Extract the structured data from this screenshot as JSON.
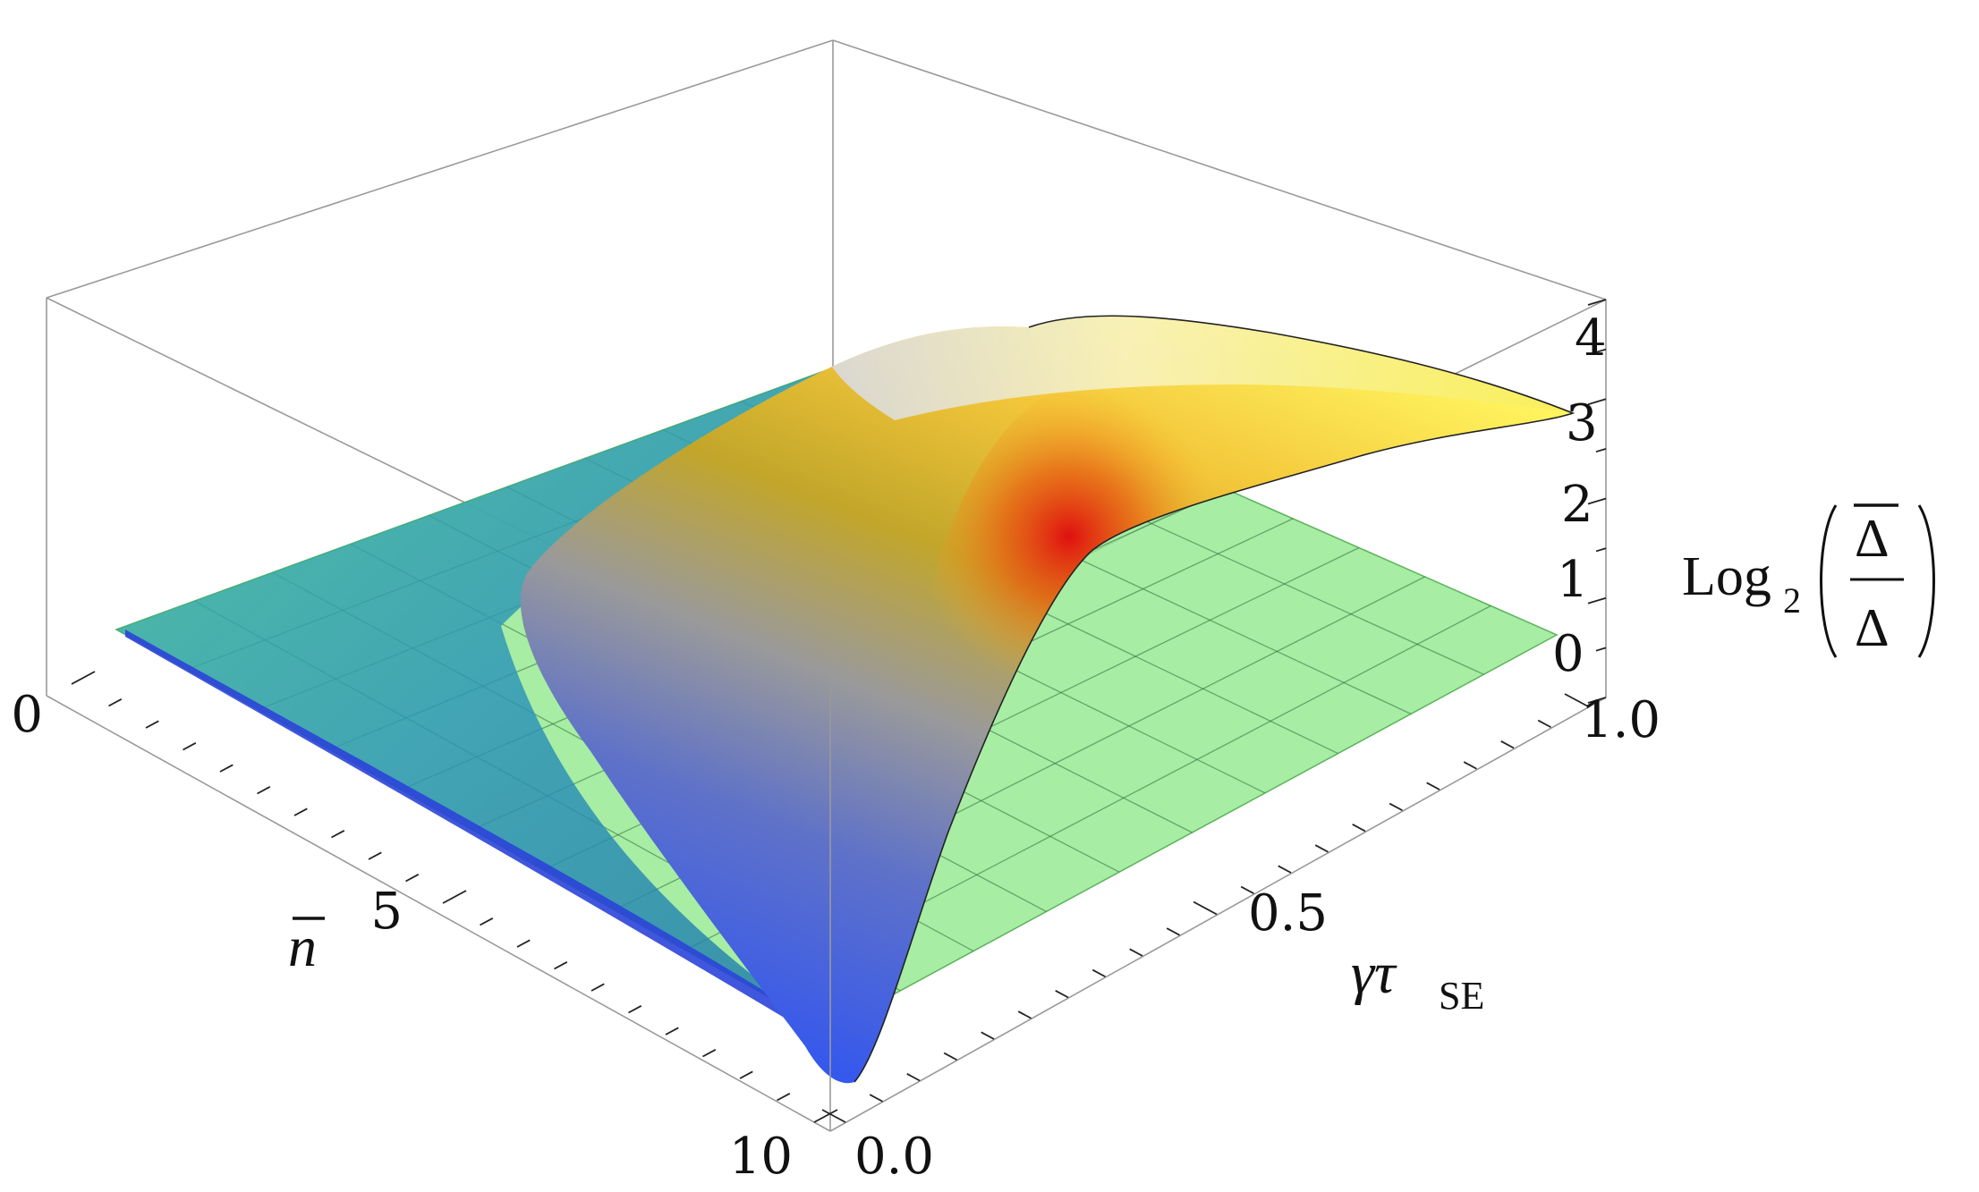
{
  "chart_data": {
    "type": "surface3d",
    "axes": {
      "x": {
        "label_main": "γτ",
        "label_sub": "SE",
        "range": [
          0,
          1
        ],
        "ticks": [
          "0.0",
          "0.5",
          "1.0"
        ]
      },
      "y": {
        "label": "n",
        "label_overbar": true,
        "range": [
          0,
          10
        ],
        "ticks": [
          "0",
          "5",
          "10"
        ]
      },
      "z": {
        "label_main": "Log",
        "label_sub": "2",
        "label_numerator": "Δ",
        "label_numerator_overbar": true,
        "label_denominator": "Δ",
        "range": [
          0,
          4
        ],
        "ticks": [
          "0",
          "1",
          "2",
          "3",
          "4"
        ]
      }
    },
    "reference_plane": {
      "z": 0,
      "color": "#8ee88a",
      "grid_divisions": 10
    },
    "surface_samples": [
      {
        "gamma_tau": 0.0,
        "n": 0,
        "log2_ratio": 0.0
      },
      {
        "gamma_tau": 0.0,
        "n": 5,
        "log2_ratio": -0.2
      },
      {
        "gamma_tau": 0.0,
        "n": 10,
        "log2_ratio": -0.6
      },
      {
        "gamma_tau": 0.1,
        "n": 10,
        "log2_ratio": 0.5
      },
      {
        "gamma_tau": 0.2,
        "n": 10,
        "log2_ratio": 2.8
      },
      {
        "gamma_tau": 0.3,
        "n": 10,
        "log2_ratio": 4.0
      },
      {
        "gamma_tau": 0.5,
        "n": 10,
        "log2_ratio": 3.7
      },
      {
        "gamma_tau": 1.0,
        "n": 10,
        "log2_ratio": 3.0
      },
      {
        "gamma_tau": 0.2,
        "n": 5,
        "log2_ratio": 1.6
      },
      {
        "gamma_tau": 0.5,
        "n": 5,
        "log2_ratio": 1.3
      },
      {
        "gamma_tau": 0.2,
        "n": 0,
        "log2_ratio": 0.1
      }
    ],
    "colors": {
      "surface_low": "#2f5cf0",
      "surface_mid": "#8c8c8c",
      "surface_high": "#f2d23c",
      "surface_peak_region": "#d8262a",
      "plane": "#8ee88a",
      "box": "#9a9a9a"
    },
    "grid": true
  }
}
